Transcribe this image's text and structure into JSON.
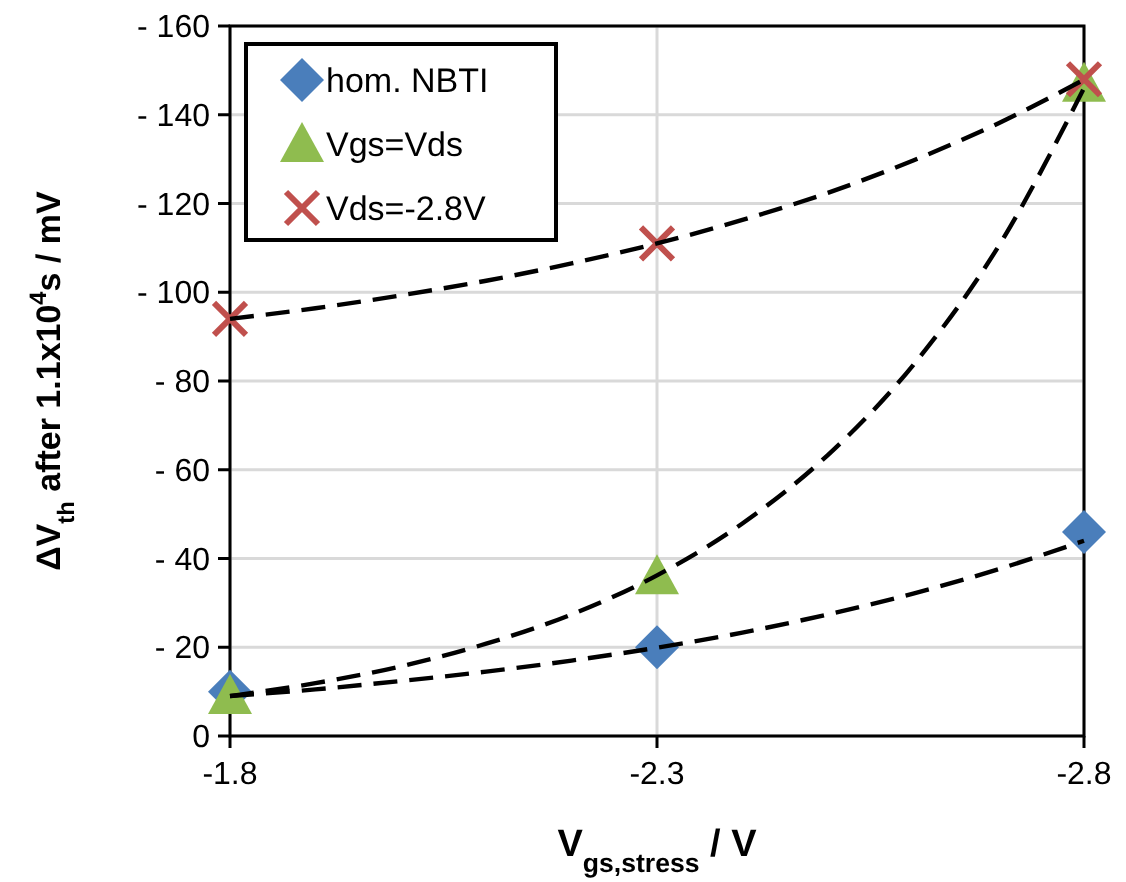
{
  "chart_data": {
    "type": "scatter",
    "xlabel": "V$_{gs,stress}$ / V",
    "ylabel": "ΔV$_{th}$ after 1.1x10$^{4}$s / mV",
    "xlim": [
      -1.8,
      -2.8
    ],
    "xticks": [
      -1.8,
      -2.3,
      -2.8
    ],
    "ylim": [
      0,
      -160
    ],
    "yticks": [
      0,
      {
        "value": -20,
        "label": "- 20"
      },
      {
        "value": -40,
        "label": "- 40"
      },
      {
        "value": -60,
        "label": "- 60"
      },
      {
        "value": -80,
        "label": "- 80"
      },
      {
        "value": -100,
        "label": "- 100"
      },
      {
        "value": -120,
        "label": "- 120"
      },
      {
        "value": -140,
        "label": "- 140"
      },
      {
        "value": -160,
        "label": "- 160"
      }
    ],
    "grid": true,
    "legend": "top left",
    "series": [
      {
        "type": "line",
        "color": "#000000",
        "marker": "none",
        "line_style": "dashed",
        "x": [
          -1.8,
          -1.9,
          -2.0,
          -2.1,
          -2.2,
          -2.3,
          -2.4,
          -2.5,
          -2.6,
          -2.7,
          -2.8
        ],
        "values": [
          -9,
          -10.5,
          -12.4,
          -14.5,
          -17,
          -19.9,
          -23.3,
          -27.4,
          -32.1,
          -37.6,
          -44
        ]
      },
      {
        "type": "line",
        "color": "#000000",
        "marker": "none",
        "line_style": "dashed",
        "x": [
          -1.8,
          -1.9,
          -2.0,
          -2.1,
          -2.2,
          -2.3,
          -2.4,
          -2.5,
          -2.6,
          -2.7,
          -2.8
        ],
        "values": [
          -9,
          -11.9,
          -15.7,
          -20.8,
          -27.4,
          -36.2,
          -47.9,
          -63.3,
          -83.6,
          -110.4,
          -146
        ]
      },
      {
        "type": "line",
        "color": "#000000",
        "marker": "none",
        "line_style": "dashed",
        "x": [
          -1.8,
          -1.9,
          -2.0,
          -2.1,
          -2.2,
          -2.3,
          -2.4,
          -2.5,
          -2.6,
          -2.7,
          -2.8
        ],
        "values": [
          -94,
          -96.4,
          -99.3,
          -102.6,
          -106.5,
          -111,
          -116.3,
          -122.4,
          -129.7,
          -138.1,
          -147.9
        ]
      },
      {
        "name": "hom. NBTI",
        "color": "#4a7ebb",
        "marker": "diamond",
        "x": [
          -1.8,
          -2.3,
          -2.8
        ],
        "values": [
          -10,
          -20,
          -46
        ]
      },
      {
        "name": "Vgs=Vds",
        "color": "#8fbc4f",
        "marker": "triangle",
        "x": [
          -1.8,
          -2.3,
          -2.8
        ],
        "values": [
          -9,
          -36,
          -147
        ]
      },
      {
        "name": "Vds=-2.8V",
        "color": "#c0504d",
        "marker": "cross",
        "x": [
          -1.8,
          -2.3,
          -2.8
        ],
        "values": [
          -94,
          -111,
          -148
        ]
      }
    ]
  }
}
